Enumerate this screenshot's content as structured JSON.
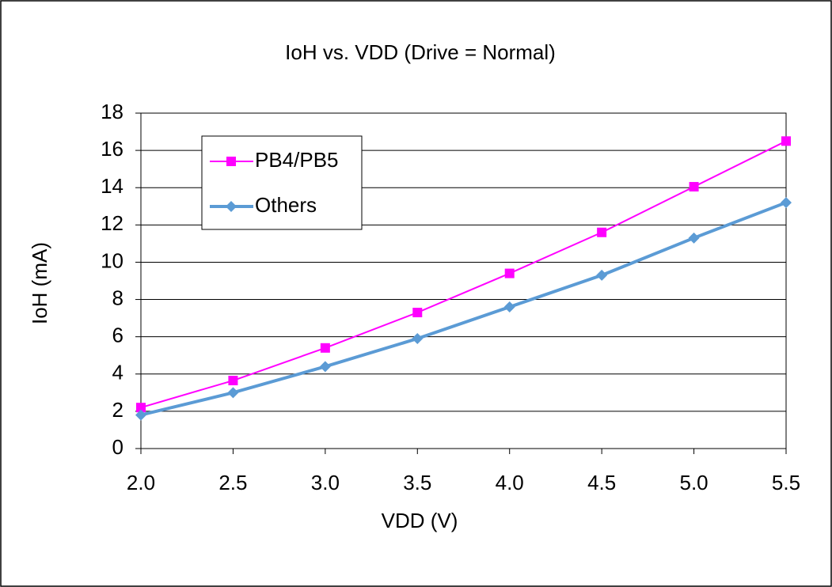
{
  "chart_data": {
    "type": "line",
    "title": "IoH vs. VDD (Drive = Normal)",
    "x_label": "VDD (V)",
    "y_label": "IoH (mA)",
    "x": [
      2.0,
      2.5,
      3.0,
      3.5,
      4.0,
      4.5,
      5.0,
      5.5
    ],
    "series": [
      {
        "name": "PB4/PB5",
        "color": "#ff00ff",
        "marker": "square",
        "values": [
          2.2,
          3.65,
          5.4,
          7.3,
          9.4,
          11.6,
          14.05,
          16.5
        ]
      },
      {
        "name": "Others",
        "color": "#5b9bd5",
        "marker": "diamond",
        "values": [
          1.8,
          3.0,
          4.4,
          5.9,
          7.6,
          9.3,
          11.3,
          13.2
        ]
      }
    ],
    "xlim": [
      2.0,
      5.5
    ],
    "xticks": [
      {
        "value": 2.0,
        "label": "2.0"
      },
      {
        "value": 2.5,
        "label": "2.5"
      },
      {
        "value": 3.0,
        "label": "3.0"
      },
      {
        "value": 3.5,
        "label": "3.5"
      },
      {
        "value": 4.0,
        "label": "4.0"
      },
      {
        "value": 4.5,
        "label": "4.5"
      },
      {
        "value": 5.0,
        "label": "5.0"
      },
      {
        "value": 5.5,
        "label": "5.5"
      }
    ],
    "ylim": [
      0,
      18
    ],
    "yticks": [
      0,
      2,
      4,
      6,
      8,
      10,
      12,
      14,
      16,
      18
    ],
    "grid": true,
    "legend": "upper left"
  }
}
